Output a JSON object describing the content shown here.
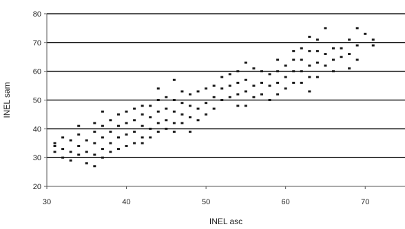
{
  "chart_data": {
    "type": "scatter",
    "xlabel": "INEL asc",
    "ylabel": "INEL sam",
    "xlim": [
      30,
      75
    ],
    "ylim": [
      20,
      80
    ],
    "xticks": [
      30,
      40,
      50,
      60,
      70
    ],
    "yticks": [
      20,
      30,
      40,
      50,
      60,
      70,
      80
    ],
    "xtick_labels": [
      "30",
      "40",
      "50",
      "60",
      "70"
    ],
    "ytick_labels": [
      "20",
      "30",
      "40",
      "50",
      "60",
      "70",
      "80"
    ],
    "grid": "horizontal",
    "legend": "none",
    "marker_color": "#1a1a1a",
    "gridline_color": "#1a1a1a",
    "series": [
      {
        "x": [
          31,
          31,
          31,
          32,
          32,
          32,
          33,
          33,
          33,
          34,
          34,
          34,
          34,
          35,
          35,
          35,
          36,
          36,
          36,
          36,
          36,
          37,
          37,
          37,
          37,
          37,
          38,
          38,
          38,
          38,
          39,
          39,
          39,
          39,
          40,
          40,
          40,
          40,
          41,
          41,
          41,
          41,
          42,
          42,
          42,
          42,
          42,
          43,
          43,
          43,
          43,
          44,
          44,
          44,
          44,
          44,
          45,
          45,
          45,
          45,
          46,
          46,
          46,
          46,
          46,
          47,
          47,
          47,
          47,
          48,
          48,
          48,
          48,
          49,
          49,
          49,
          50,
          50,
          50,
          51,
          51,
          51,
          52,
          52,
          52,
          53,
          53,
          53,
          54,
          54,
          54,
          54,
          55,
          55,
          55,
          55,
          56,
          56,
          56,
          57,
          57,
          57,
          58,
          58,
          58,
          59,
          59,
          59,
          59,
          60,
          60,
          60,
          61,
          61,
          61,
          61,
          62,
          62,
          62,
          62,
          63,
          63,
          63,
          63,
          63,
          64,
          64,
          64,
          64,
          65,
          65,
          65,
          66,
          66,
          66,
          67,
          67,
          68,
          68,
          68,
          69,
          69,
          69,
          70,
          71,
          71
        ],
        "y": [
          32,
          34,
          35,
          30,
          33,
          37,
          29,
          32,
          36,
          31,
          34,
          38,
          41,
          28,
          32,
          36,
          27,
          31,
          35,
          39,
          42,
          30,
          33,
          37,
          41,
          46,
          32,
          35,
          39,
          43,
          33,
          37,
          41,
          45,
          34,
          38,
          42,
          46,
          35,
          39,
          43,
          47,
          35,
          37,
          41,
          45,
          48,
          37,
          40,
          44,
          48,
          39,
          42,
          46,
          50,
          54,
          40,
          43,
          47,
          51,
          39,
          42,
          46,
          50,
          57,
          42,
          45,
          49,
          53,
          39,
          44,
          48,
          52,
          43,
          47,
          53,
          45,
          49,
          54,
          47,
          51,
          55,
          50,
          54,
          58,
          51,
          55,
          59,
          48,
          52,
          56,
          60,
          48,
          53,
          57,
          63,
          51,
          55,
          61,
          52,
          56,
          60,
          50,
          55,
          59,
          52,
          56,
          60,
          64,
          54,
          58,
          62,
          56,
          60,
          64,
          67,
          56,
          60,
          64,
          68,
          53,
          58,
          62,
          67,
          72,
          58,
          63,
          67,
          71,
          62,
          66,
          75,
          60,
          64,
          68,
          65,
          68,
          61,
          66,
          71,
          64,
          69,
          75,
          73,
          69,
          71
        ]
      }
    ]
  }
}
